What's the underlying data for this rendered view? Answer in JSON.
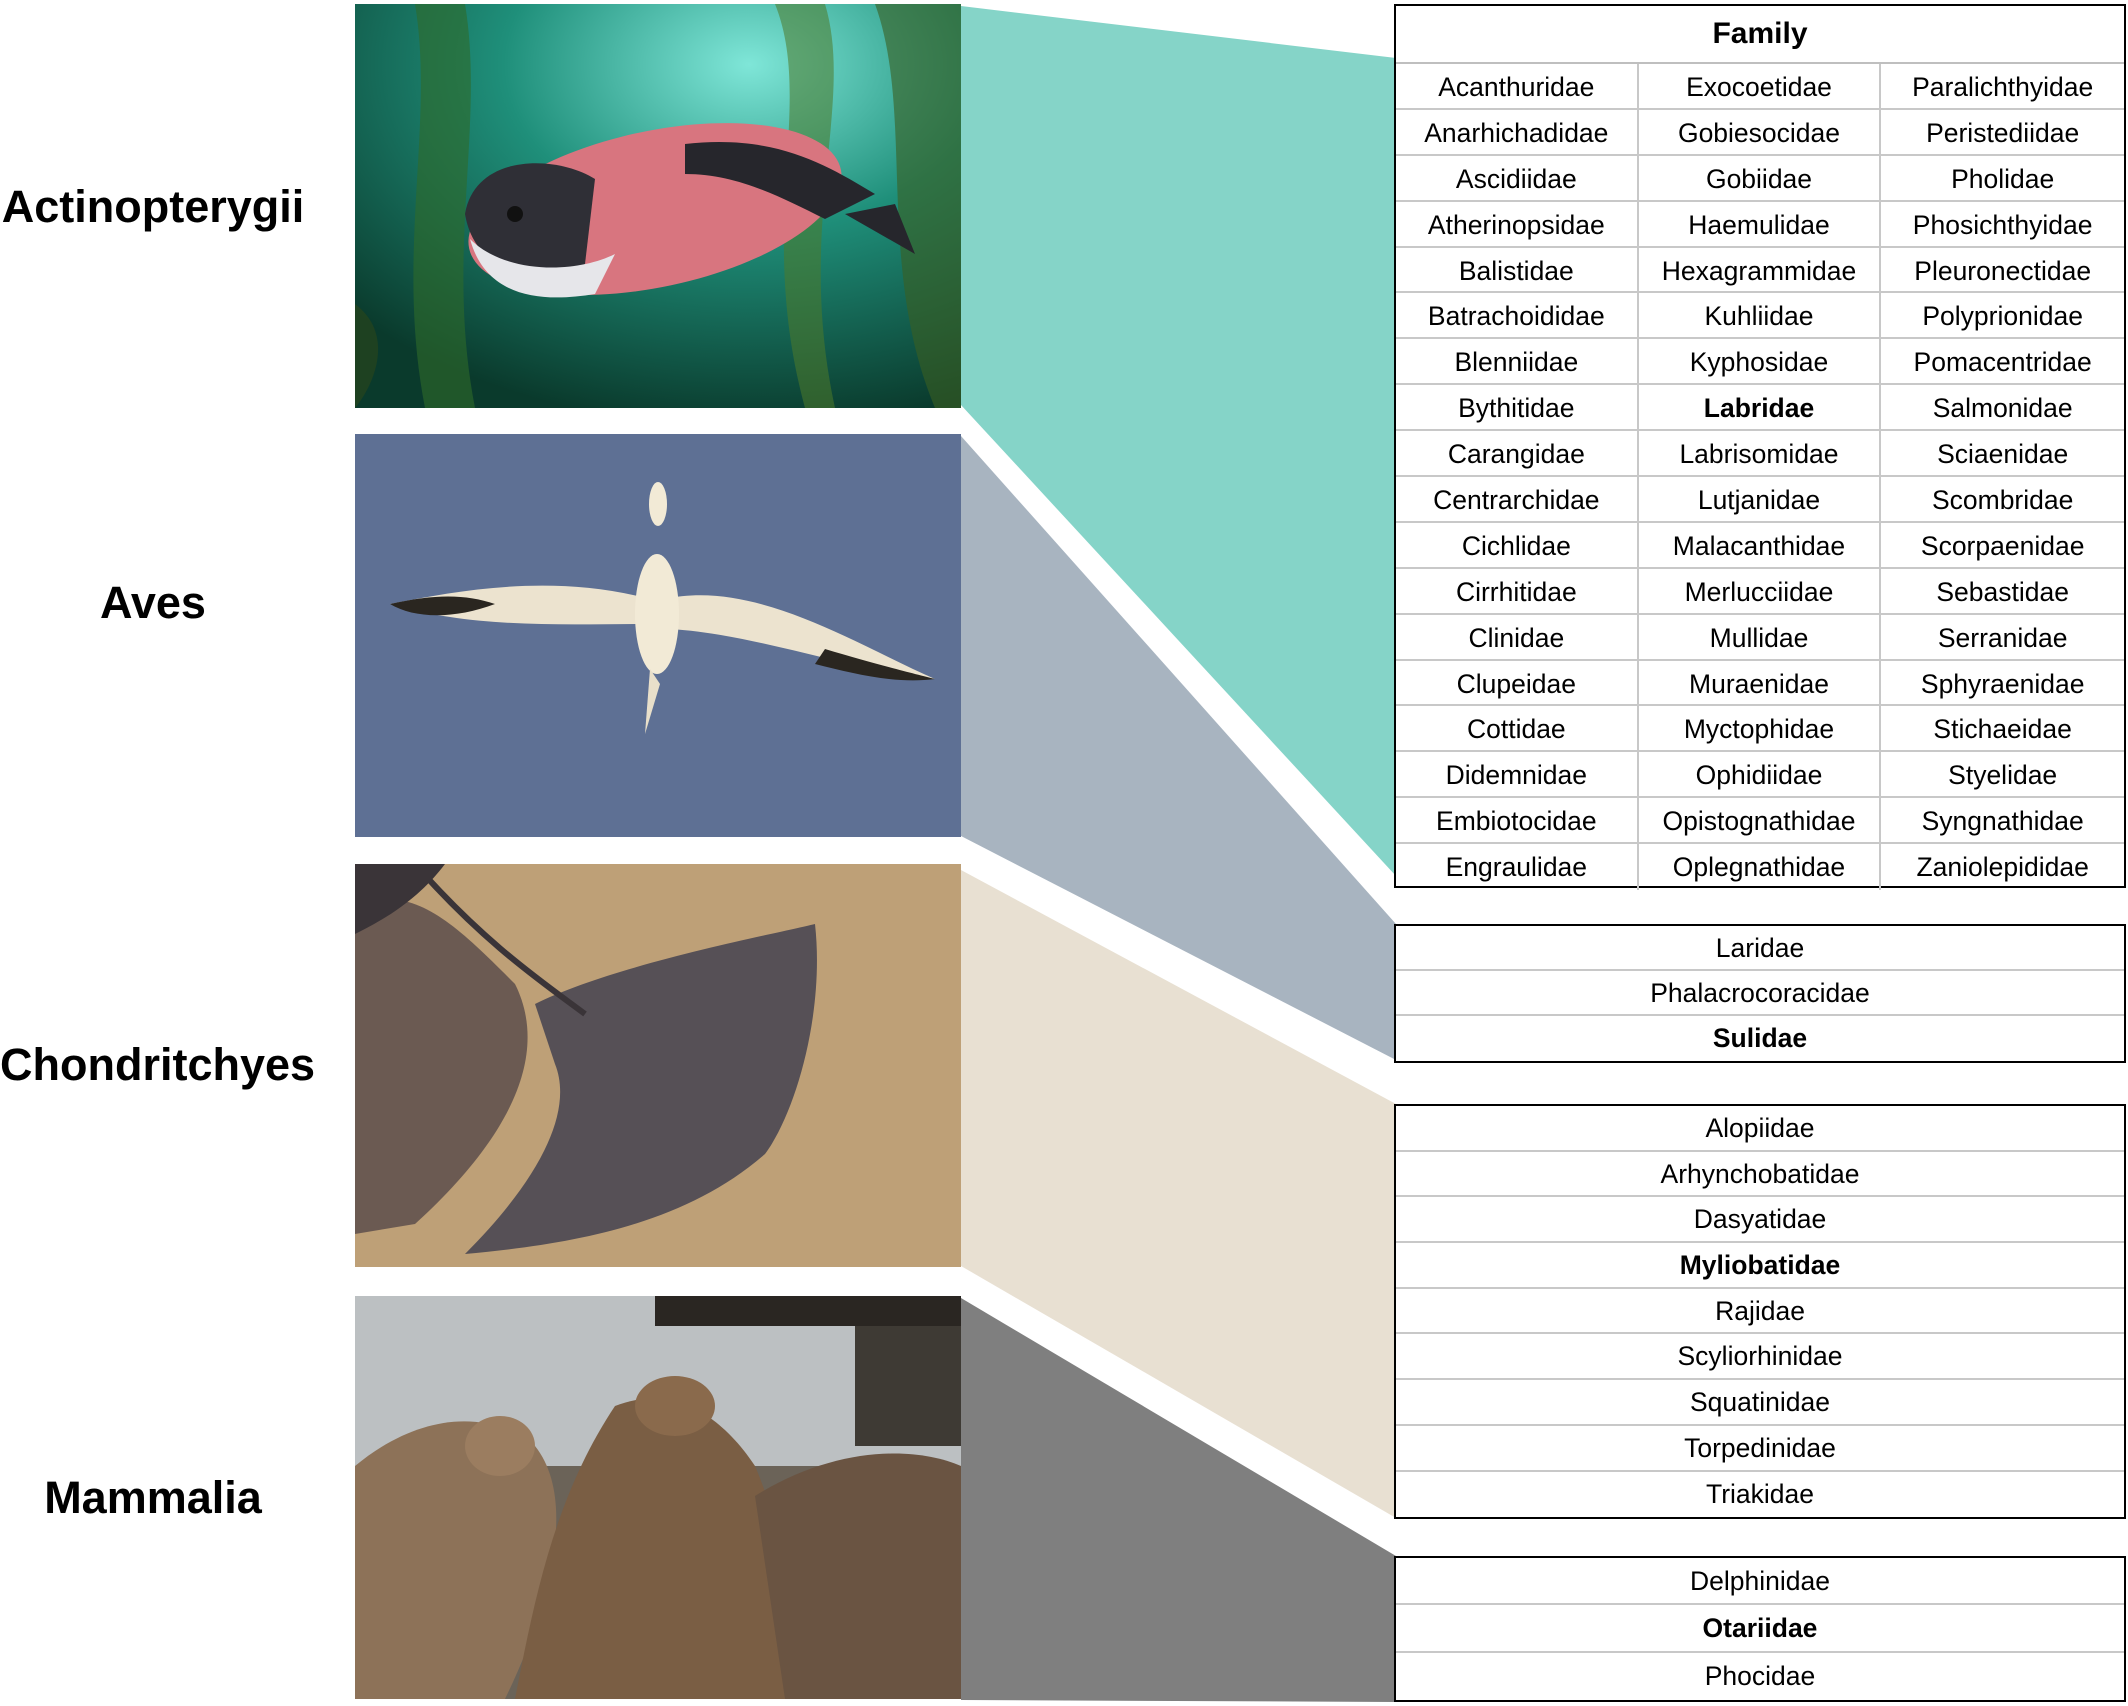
{
  "classes": [
    {
      "name": "Actinopterygii",
      "band_color": "#85d4c8",
      "header": "Family",
      "families": [
        "Acanthuridae",
        "Exocoetidae",
        "Paralichthyidae",
        "Anarhichadidae",
        "Gobiesocidae",
        "Peristediidae",
        "Ascidiidae",
        "Gobiidae",
        "Pholidae",
        "Atherinopsidae",
        "Haemulidae",
        "Phosichthyidae",
        "Balistidae",
        "Hexagrammidae",
        "Pleuronectidae",
        "Batrachoididae",
        "Kuhliidae",
        "Polyprionidae",
        "Blenniidae",
        "Kyphosidae",
        "Pomacentridae",
        "Bythitidae",
        "Labridae",
        "Salmonidae",
        "Carangidae",
        "Labrisomidae",
        "Sciaenidae",
        "Centrarchidae",
        "Lutjanidae",
        "Scombridae",
        "Cichlidae",
        "Malacanthidae",
        "Scorpaenidae",
        "Cirrhitidae",
        "Merlucciidae",
        "Sebastidae",
        "Clinidae",
        "Mullidae",
        "Serranidae",
        "Clupeidae",
        "Muraenidae",
        "Sphyraenidae",
        "Cottidae",
        "Myctophidae",
        "Stichaeidae",
        "Didemnidae",
        "Ophidiidae",
        "Styelidae",
        "Embiotocidae",
        "Opistognathidae",
        "Syngnathidae",
        "Engraulidae",
        "Oplegnathidae",
        "Zaniolepididae"
      ],
      "highlighted": "Labridae"
    },
    {
      "name": "Aves",
      "band_color": "#a8b4c0",
      "families": [
        "Laridae",
        "Phalacrocoracidae",
        "Sulidae"
      ],
      "highlighted": "Sulidae"
    },
    {
      "name": "Chondritchyes",
      "band_color": "#e8e0d2",
      "families": [
        "Alopiidae",
        "Arhynchobatidae",
        "Dasyatidae",
        "Myliobatidae",
        "Rajidae",
        "Scyliorhinidae",
        "Squatinidae",
        "Torpedinidae",
        "Triakidae"
      ],
      "highlighted": "Myliobatidae"
    },
    {
      "name": "Mammalia",
      "band_color": "#7f7f7f",
      "families": [
        "Delphinidae",
        "Otariidae",
        "Phocidae"
      ],
      "highlighted": "Otariidae"
    }
  ]
}
